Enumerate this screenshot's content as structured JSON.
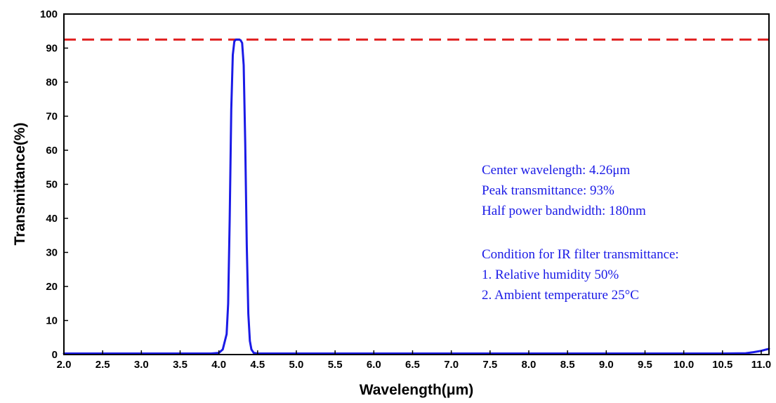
{
  "chart_data": {
    "type": "line",
    "xlabel": "Wavelength(μm)",
    "ylabel": "Transmittance(%)",
    "xlim": [
      2.0,
      11.1
    ],
    "ylim": [
      0,
      100
    ],
    "x_ticks": [
      "2.0",
      "2.5",
      "3.0",
      "3.5",
      "4.0",
      "4.5",
      "5.0",
      "5.5",
      "6.0",
      "6.5",
      "7.0",
      "7.5",
      "8.0",
      "8.5",
      "9.0",
      "9.5",
      "10.0",
      "10.5",
      "11.0"
    ],
    "y_ticks": [
      "0",
      "10",
      "20",
      "30",
      "40",
      "50",
      "60",
      "70",
      "80",
      "90",
      "100"
    ],
    "grid": false,
    "series": [
      {
        "color": "#1a1ae6",
        "x": [
          2.0,
          3.0,
          3.9,
          4.0,
          4.05,
          4.1,
          4.12,
          4.14,
          4.16,
          4.18,
          4.2,
          4.22,
          4.24,
          4.26,
          4.28,
          4.3,
          4.32,
          4.34,
          4.36,
          4.38,
          4.4,
          4.42,
          4.45,
          4.5,
          5.0,
          6.0,
          7.0,
          8.0,
          9.0,
          10.0,
          10.5,
          10.8,
          10.9,
          11.0,
          11.05,
          11.1
        ],
        "y": [
          0.3,
          0.3,
          0.3,
          0.5,
          1.5,
          6,
          15,
          40,
          72,
          88,
          92,
          92.5,
          92.5,
          92.5,
          92.3,
          91.5,
          85,
          62,
          32,
          12,
          4,
          1.5,
          0.5,
          0.3,
          0.3,
          0.3,
          0.3,
          0.3,
          0.3,
          0.3,
          0.3,
          0.4,
          0.7,
          1.1,
          1.4,
          1.7
        ]
      }
    ],
    "reference_line": {
      "y": 92.5,
      "color": "#e02020",
      "style": "dashed"
    },
    "annotations": [
      "Center wavelength: 4.26μm",
      "Peak transmittance: 93%",
      "Half power bandwidth: 180nm",
      "Condition for IR filter transmittance:",
      "1. Relative humidity 50%",
      "2. Ambient temperature 25°C"
    ]
  }
}
